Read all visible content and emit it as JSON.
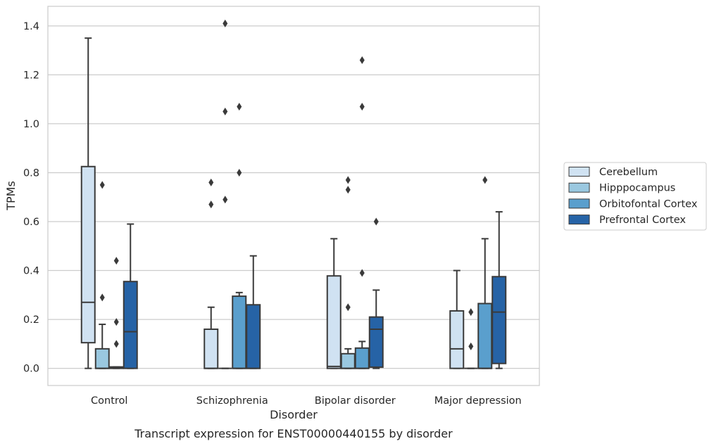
{
  "chart_data": {
    "type": "box",
    "title": "",
    "caption": "Transcript expression for ENST00000440155 by disorder",
    "xlabel": "Disorder",
    "ylabel": "TPMs",
    "ylim": [
      -0.07,
      1.48
    ],
    "yticks": [
      0.0,
      0.2,
      0.4,
      0.6,
      0.8,
      1.0,
      1.2,
      1.4
    ],
    "ytick_labels": [
      "0.0",
      "0.2",
      "0.4",
      "0.6",
      "0.8",
      "1.0",
      "1.2",
      "1.4"
    ],
    "grid": true,
    "legend_position": "right",
    "categories": [
      "Control",
      "Schizophrenia",
      "Bipolar disorder",
      "Major depression"
    ],
    "series": [
      {
        "name": "Cerebellum",
        "color": "#d0e2f2",
        "boxes": [
          {
            "whisker_low": 0.0,
            "q1": 0.105,
            "median": 0.27,
            "q3": 0.825,
            "whisker_high": 1.35,
            "outliers": []
          },
          {
            "whisker_low": 0.0,
            "q1": 0.0,
            "median": 0.0,
            "q3": 0.16,
            "whisker_high": 0.25,
            "outliers": [
              0.67,
              0.76
            ]
          },
          {
            "whisker_low": 0.0,
            "q1": 0.0,
            "median": 0.008,
            "q3": 0.378,
            "whisker_high": 0.53,
            "outliers": []
          },
          {
            "whisker_low": 0.0,
            "q1": 0.0,
            "median": 0.08,
            "q3": 0.235,
            "whisker_high": 0.4,
            "outliers": []
          }
        ]
      },
      {
        "name": "Hipppocampus",
        "color": "#9ac8e0",
        "boxes": [
          {
            "whisker_low": 0.0,
            "q1": 0.0,
            "median": 0.0,
            "q3": 0.08,
            "whisker_high": 0.18,
            "outliers": [
              0.29,
              0.75
            ]
          },
          {
            "whisker_low": 0.0,
            "q1": 0.0,
            "median": 0.0,
            "q3": 0.0,
            "whisker_high": 0.0,
            "outliers": [
              0.69,
              1.05,
              1.41
            ]
          },
          {
            "whisker_low": 0.0,
            "q1": 0.0,
            "median": 0.0,
            "q3": 0.06,
            "whisker_high": 0.08,
            "outliers": [
              0.25,
              0.73,
              0.77
            ]
          },
          {
            "whisker_low": 0.0,
            "q1": 0.0,
            "median": 0.0,
            "q3": 0.0,
            "whisker_high": 0.0,
            "outliers": [
              0.09,
              0.23
            ]
          }
        ]
      },
      {
        "name": "Orbitofontal Cortex",
        "color": "#5a9fcd",
        "boxes": [
          {
            "whisker_low": 0.0,
            "q1": 0.0,
            "median": 0.003,
            "q3": 0.006,
            "whisker_high": 0.006,
            "outliers": [
              0.1,
              0.19,
              0.44
            ]
          },
          {
            "whisker_low": 0.0,
            "q1": 0.0,
            "median": 0.0,
            "q3": 0.295,
            "whisker_high": 0.31,
            "outliers": [
              0.8,
              1.07
            ]
          },
          {
            "whisker_low": 0.0,
            "q1": 0.0,
            "median": 0.0,
            "q3": 0.083,
            "whisker_high": 0.11,
            "outliers": [
              0.39,
              1.07,
              1.26
            ]
          },
          {
            "whisker_low": 0.0,
            "q1": 0.0,
            "median": 0.0,
            "q3": 0.265,
            "whisker_high": 0.53,
            "outliers": [
              0.77
            ]
          }
        ]
      },
      {
        "name": "Prefrontal Cortex",
        "color": "#2663a6",
        "boxes": [
          {
            "whisker_low": 0.0,
            "q1": 0.0,
            "median": 0.15,
            "q3": 0.355,
            "whisker_high": 0.59,
            "outliers": []
          },
          {
            "whisker_low": 0.0,
            "q1": 0.0,
            "median": 0.0,
            "q3": 0.26,
            "whisker_high": 0.46,
            "outliers": []
          },
          {
            "whisker_low": 0.0,
            "q1": 0.005,
            "median": 0.16,
            "q3": 0.21,
            "whisker_high": 0.32,
            "outliers": [
              0.6
            ]
          },
          {
            "whisker_low": 0.0,
            "q1": 0.02,
            "median": 0.23,
            "q3": 0.375,
            "whisker_high": 0.64,
            "outliers": []
          }
        ]
      }
    ]
  }
}
